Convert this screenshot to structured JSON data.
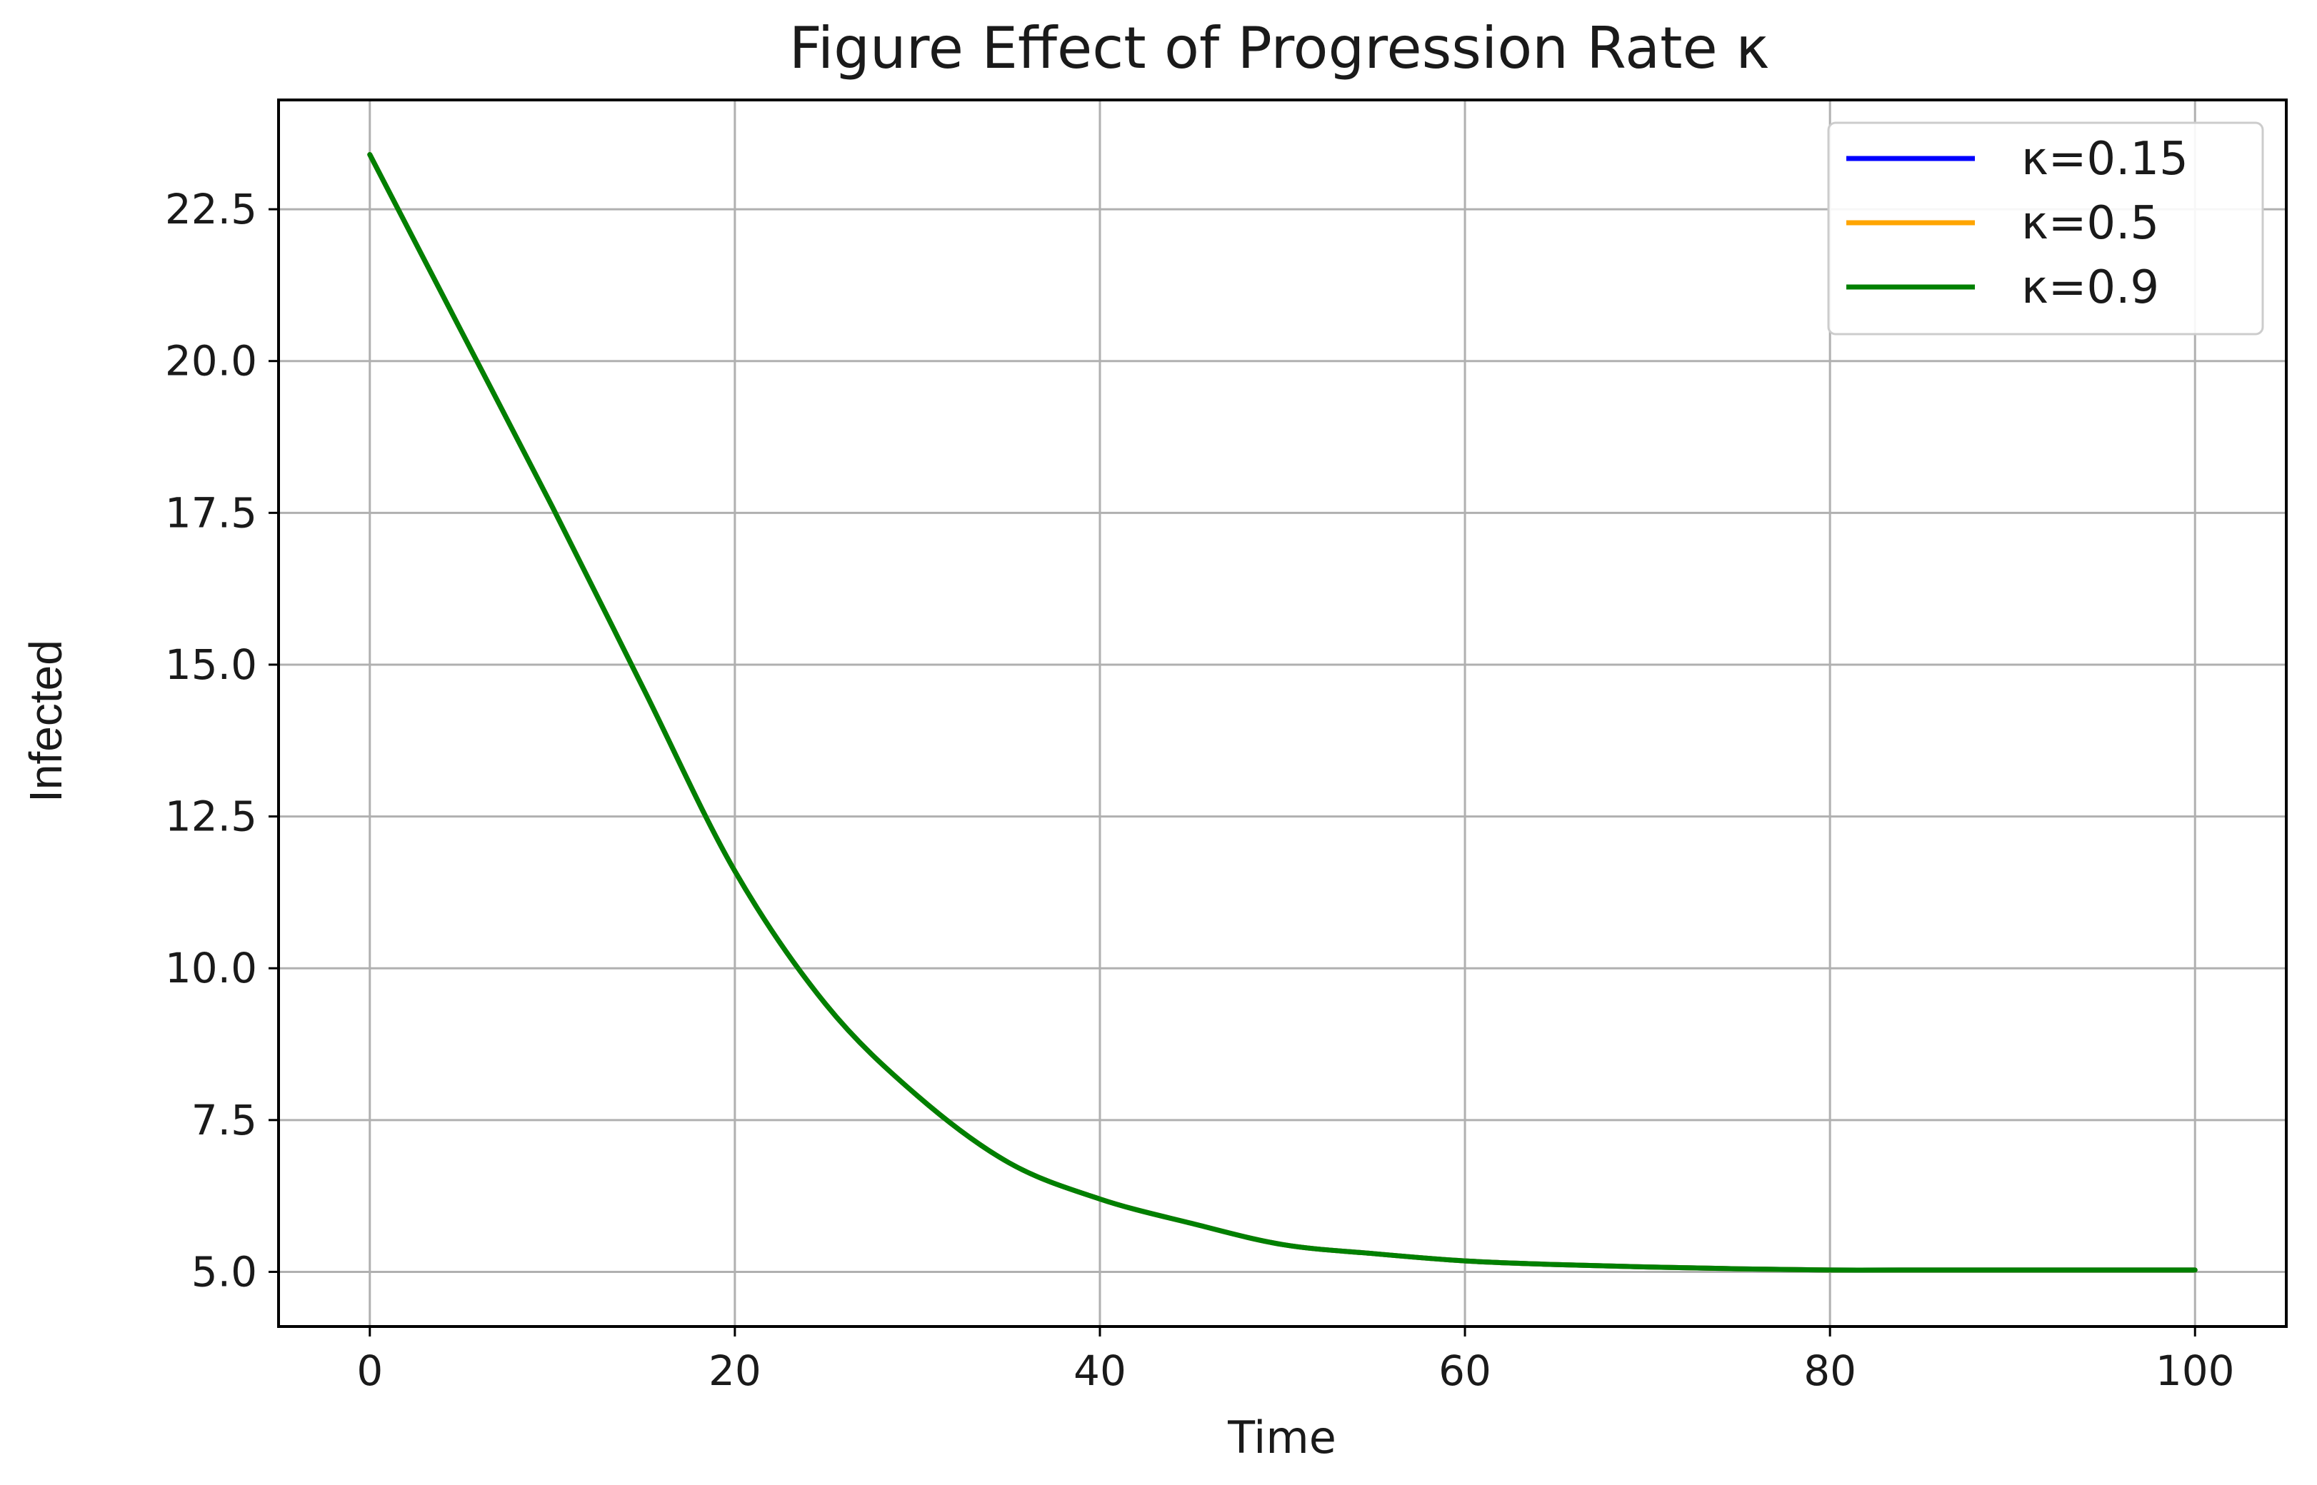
{
  "chart_data": {
    "type": "line",
    "title": "Figure Effect of Progression Rate κ",
    "xlabel": "Time",
    "ylabel": "Infected",
    "xlim": [
      -5,
      105
    ],
    "ylim": [
      4.1,
      24.3
    ],
    "xticks": [
      0,
      20,
      40,
      60,
      80,
      100
    ],
    "xtick_labels": [
      "0",
      "20",
      "40",
      "60",
      "80",
      "100"
    ],
    "yticks": [
      5.0,
      7.5,
      10.0,
      12.5,
      15.0,
      17.5,
      20.0,
      22.5
    ],
    "ytick_labels": [
      "5.0",
      "7.5",
      "10.0",
      "12.5",
      "15.0",
      "17.5",
      "20.0",
      "22.5"
    ],
    "grid": true,
    "legend_position": "top-right",
    "x": [
      0,
      5,
      10,
      15,
      20,
      25,
      30,
      35,
      40,
      45,
      50,
      55,
      60,
      65,
      70,
      75,
      80,
      85,
      90,
      95,
      100
    ],
    "series": [
      {
        "name": "κ=0.15",
        "color": "#0000ff",
        "values": [
          23.4,
          20.5,
          17.6,
          14.6,
          11.6,
          9.4,
          7.9,
          6.8,
          6.2,
          5.8,
          5.45,
          5.3,
          5.18,
          5.12,
          5.08,
          5.05,
          5.03,
          5.03,
          5.03,
          5.03,
          5.03
        ]
      },
      {
        "name": "κ=0.5",
        "color": "#ffa500",
        "values": [
          23.4,
          20.5,
          17.6,
          14.6,
          11.6,
          9.4,
          7.9,
          6.8,
          6.2,
          5.8,
          5.45,
          5.3,
          5.18,
          5.12,
          5.08,
          5.05,
          5.03,
          5.03,
          5.03,
          5.03,
          5.03
        ]
      },
      {
        "name": "κ=0.9",
        "color": "#008000",
        "values": [
          23.4,
          20.5,
          17.6,
          14.6,
          11.6,
          9.4,
          7.9,
          6.8,
          6.2,
          5.8,
          5.45,
          5.3,
          5.18,
          5.12,
          5.08,
          5.05,
          5.03,
          5.03,
          5.03,
          5.03,
          5.03
        ]
      }
    ]
  }
}
